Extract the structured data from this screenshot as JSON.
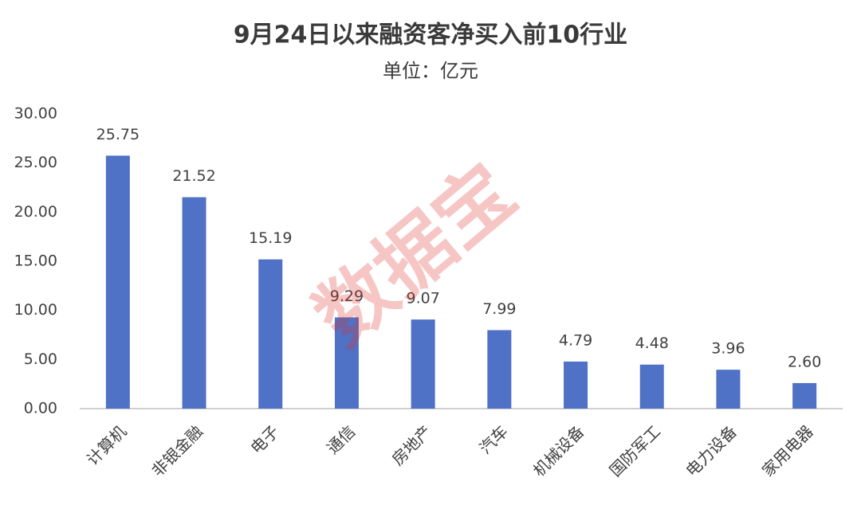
{
  "chart_data": {
    "type": "bar",
    "title": "9月24日以来融资客净买入前10行业",
    "subtitle": "单位：亿元",
    "watermark": "数据宝",
    "categories": [
      "计算机",
      "非银金融",
      "电子",
      "通信",
      "房地产",
      "汽车",
      "机械设备",
      "国防军工",
      "电力设备",
      "家用电器"
    ],
    "values": [
      25.75,
      21.52,
      15.19,
      9.29,
      9.07,
      7.99,
      4.79,
      4.48,
      3.96,
      2.6
    ],
    "value_labels": [
      "25.75",
      "21.52",
      "15.19",
      "9.29",
      "9.07",
      "7.99",
      "4.79",
      "4.48",
      "3.96",
      "2.60"
    ],
    "color": "#4f71c6",
    "ylim": [
      0,
      30
    ],
    "yticks": [
      {
        "value": 0,
        "label": "0.00"
      },
      {
        "value": 5,
        "label": "5.00"
      },
      {
        "value": 10,
        "label": "10.00"
      },
      {
        "value": 15,
        "label": "15.00"
      },
      {
        "value": 20,
        "label": "20.00"
      },
      {
        "value": 25,
        "label": "25.00"
      },
      {
        "value": 30,
        "label": "30.00"
      }
    ],
    "grid": false
  }
}
